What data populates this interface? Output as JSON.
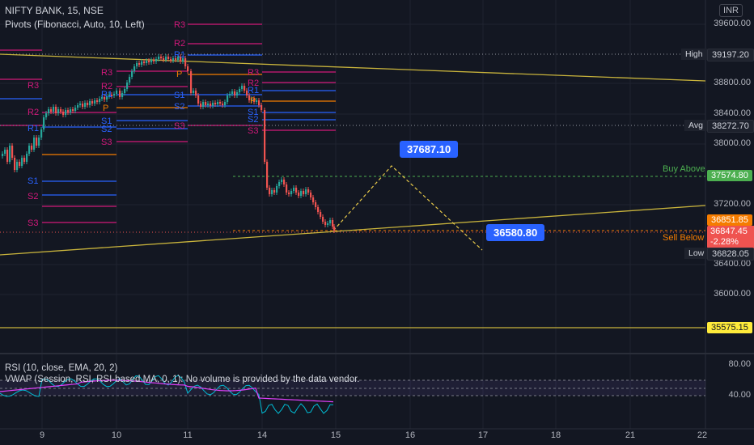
{
  "header": {
    "symbol": "NIFTY BANK, 15, NSE",
    "indicator": "Pivots (Fibonacci, Auto, 10, Left)",
    "currency": "INR"
  },
  "price_axis": [
    "39600.00",
    "38800.00",
    "38400.00",
    "38000.00",
    "37200.00",
    "36400.00",
    "36000.00"
  ],
  "markers": {
    "high": {
      "label": "High",
      "value": "39197.20"
    },
    "avg": {
      "label": "Avg",
      "value": "38272.70"
    },
    "buy_above": {
      "label": "Buy Above",
      "value": "37574.80"
    },
    "current1": {
      "value": "36851.85"
    },
    "current2": {
      "value": "36847.45",
      "change": "-2.28%"
    },
    "sell_below": {
      "label": "Sell Below"
    },
    "low": {
      "label": "Low",
      "value": "36828.05"
    },
    "support": {
      "value": "35575.15"
    }
  },
  "callouts": {
    "target_high": "37687.10",
    "target_low": "36580.80"
  },
  "pivot_labels": {
    "r3": "R3",
    "r2": "R2",
    "r1": "R1",
    "p": "P",
    "s1": "S1",
    "s2": "S2",
    "s3": "S3"
  },
  "rsi": {
    "title": "RSI (10, close, EMA, 20, 2)",
    "vwap": "VWAP (Session, RSI, RSI-based MA, 0, 1): No volume is provided by the data vendor.",
    "axis": [
      "80.00",
      "40.00"
    ]
  },
  "time_axis": [
    "9",
    "10",
    "11",
    "14",
    "15",
    "16",
    "17",
    "18",
    "21",
    "22"
  ],
  "colors": {
    "bg": "#131722",
    "up": "#26a69a",
    "down": "#ef5350",
    "trend": "#c9b43c",
    "blue": "#2962ff",
    "pivot_r": "#d1187a",
    "pivot_s": "#2962ff",
    "pivot_p": "#f57c00"
  }
}
